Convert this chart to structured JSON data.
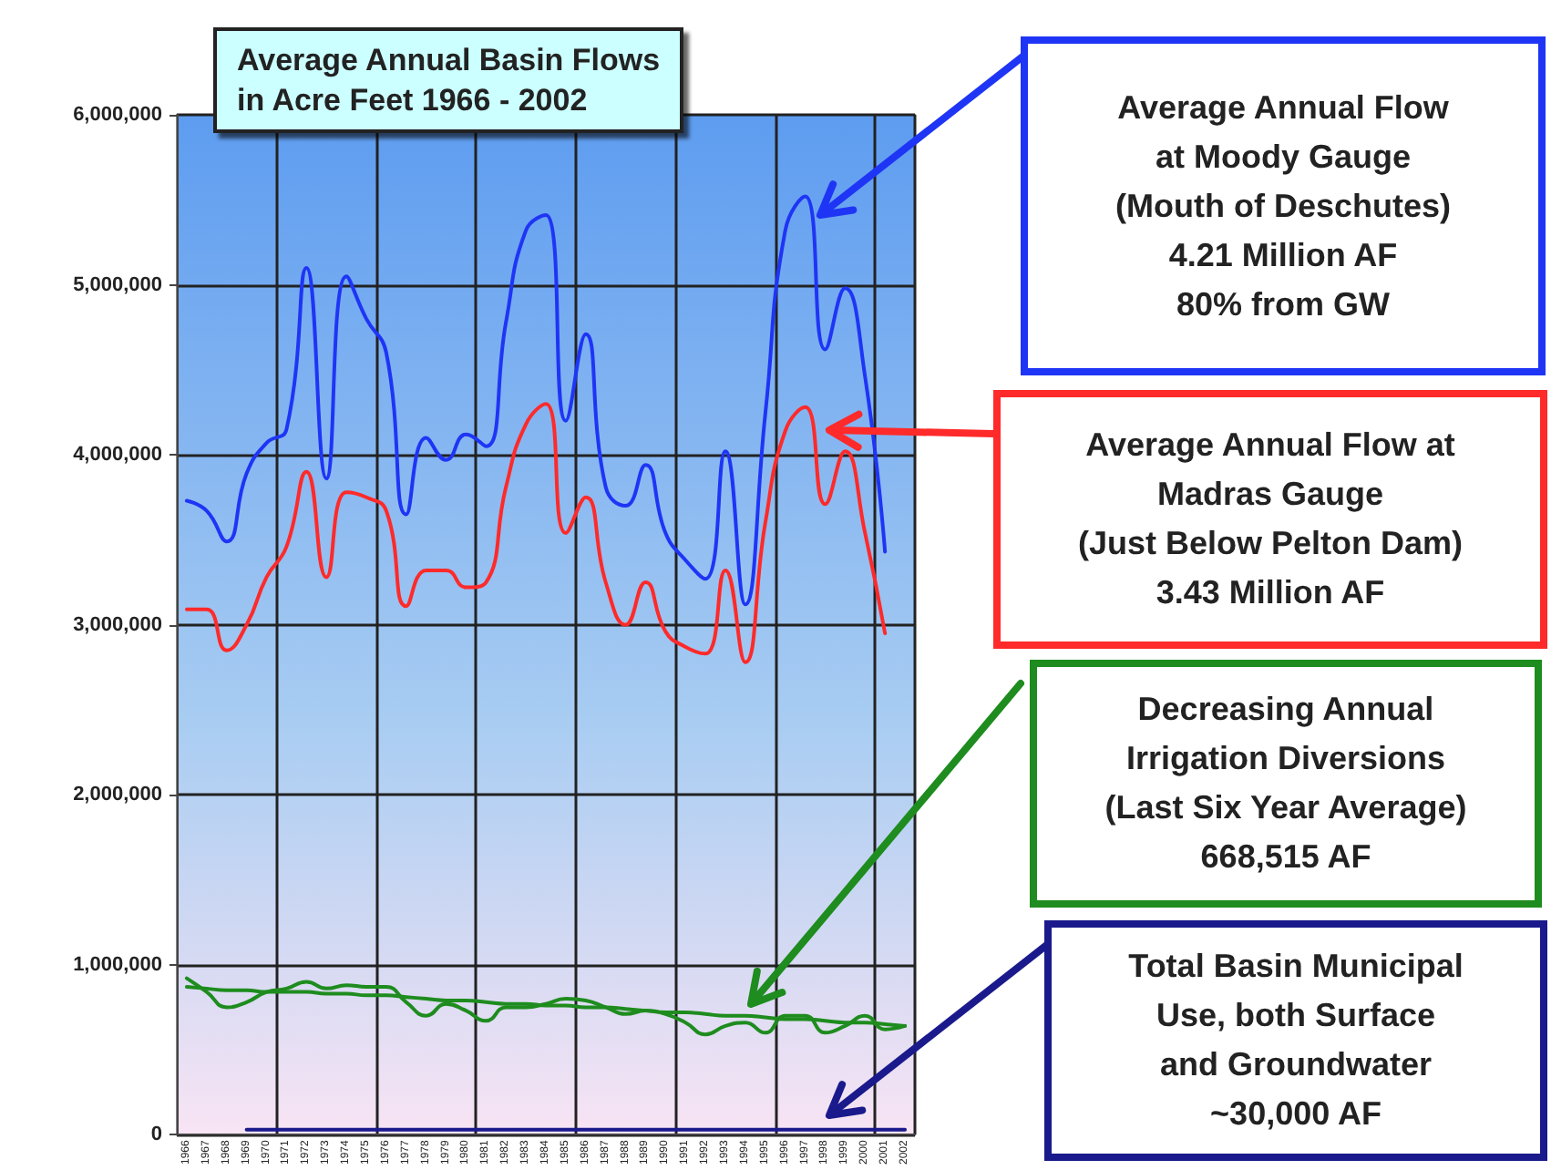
{
  "chart_data": {
    "type": "line",
    "title": "Average Annual Basin Flows\nin Acre Feet 1966 - 2002",
    "categories": [
      "1966",
      "1967",
      "1968",
      "1969",
      "1970",
      "1971",
      "1972",
      "1973",
      "1974",
      "1975",
      "1976",
      "1977",
      "1978",
      "1979",
      "1980",
      "1981",
      "1982",
      "1983",
      "1984",
      "1985",
      "1986",
      "1987",
      "1988",
      "1989",
      "1990",
      "1991",
      "1992",
      "1993",
      "1994",
      "1995",
      "1996",
      "1997",
      "1998",
      "1999",
      "2000",
      "2001",
      "2002"
    ],
    "series": [
      {
        "color": "#1f35f5",
        "values": [
          3730000,
          3670000,
          3490000,
          3890000,
          4070000,
          4150000,
          5100000,
          3860000,
          5050000,
          4800000,
          4600000,
          3650000,
          4100000,
          3970000,
          4120000,
          4050000,
          4780000,
          5320000,
          5410000,
          4200000,
          4710000,
          3810000,
          3700000,
          3940000,
          3540000,
          3380000,
          3270000,
          4020000,
          3120000,
          4240000,
          5320000,
          5520000,
          4620000,
          4980000,
          4460000,
          3430000,
          null
        ]
      },
      {
        "color": "#ff2a2a",
        "values": [
          3090000,
          3090000,
          2850000,
          3000000,
          3280000,
          3460000,
          3900000,
          3280000,
          3780000,
          3750000,
          3670000,
          3110000,
          3320000,
          3320000,
          3220000,
          3250000,
          3810000,
          4180000,
          4300000,
          3540000,
          3750000,
          3250000,
          3000000,
          3250000,
          2960000,
          2870000,
          2830000,
          3320000,
          2780000,
          3600000,
          4140000,
          4280000,
          3710000,
          4020000,
          3540000,
          2950000,
          null
        ]
      },
      {
        "color": "#1e8c1e",
        "values": [
          920000,
          840000,
          750000,
          780000,
          840000,
          860000,
          900000,
          860000,
          880000,
          870000,
          870000,
          780000,
          700000,
          770000,
          730000,
          670000,
          750000,
          750000,
          770000,
          800000,
          790000,
          750000,
          710000,
          730000,
          710000,
          660000,
          590000,
          640000,
          660000,
          600000,
          700000,
          700000,
          600000,
          640000,
          700000,
          620000,
          640000
        ]
      },
      {
        "color": "#1a1a8c",
        "values": [
          null,
          null,
          null,
          30000,
          30000,
          30000,
          30000,
          30000,
          30000,
          30000,
          30000,
          30000,
          30000,
          30000,
          30000,
          30000,
          30000,
          30000,
          30000,
          30000,
          30000,
          30000,
          30000,
          30000,
          30000,
          30000,
          30000,
          30000,
          30000,
          30000,
          30000,
          30000,
          30000,
          30000,
          30000,
          30000,
          30000
        ]
      },
      {
        "color": "#1e8c1e",
        "values": [
          870000,
          860000,
          850000,
          850000,
          840000,
          840000,
          840000,
          830000,
          830000,
          820000,
          820000,
          810000,
          800000,
          790000,
          790000,
          780000,
          770000,
          770000,
          760000,
          760000,
          750000,
          750000,
          740000,
          730000,
          720000,
          720000,
          710000,
          700000,
          700000,
          690000,
          680000,
          680000,
          670000,
          660000,
          660000,
          650000,
          640000
        ]
      }
    ],
    "ylim": [
      0,
      6000000
    ],
    "yticks": [
      0,
      {
        "value": 1000000,
        "label": "1,000,000"
      },
      {
        "value": 2000000,
        "label": "2,000,000"
      },
      {
        "value": 3000000,
        "label": "3,000,000"
      },
      {
        "value": 4000000,
        "label": "4,000,000"
      },
      {
        "value": 5000000,
        "label": "5,000,000"
      },
      {
        "value": 6000000,
        "label": "6,000,000"
      }
    ],
    "grid": true,
    "marker": "none",
    "annotations": [
      "Average Annual Flow\nat Moody Gauge\n(Mouth of Deschutes)\n4.21 Million AF\n80% from GW",
      "Average Annual Flow at\nMadras Gauge\n(Just Below Pelton Dam)\n3.43 Million AF",
      "Decreasing Annual\nIrrigation Diversions\n(Last Six Year Average)\n668,515 AF",
      "Total Basin Municipal\nUse, both Surface\nand Groundwater\n~30,000 AF"
    ]
  }
}
